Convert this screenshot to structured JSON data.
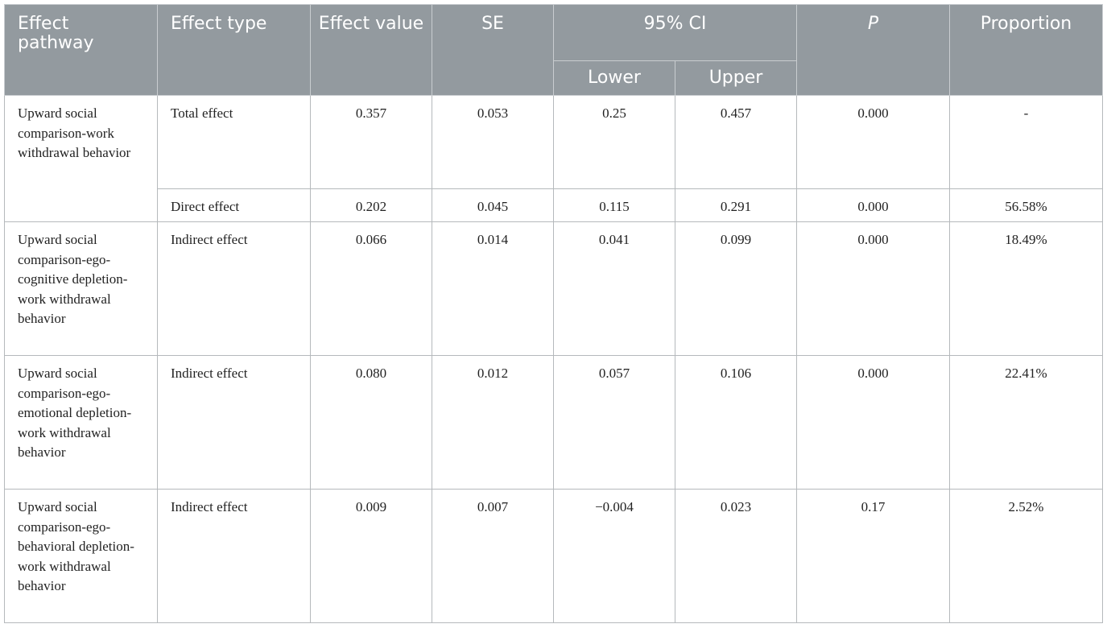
{
  "header": {
    "effect_pathway": "Effect pathway",
    "effect_type": "Effect type",
    "effect_value": "Effect value",
    "se": "SE",
    "ci": "95% CI",
    "lower": "Lower",
    "upper": "Upper",
    "p": "P",
    "proportion": "Proportion"
  },
  "rows": [
    {
      "pathway": "Upward social comparison-work withdrawal behavior",
      "type": "Total effect",
      "value": "0.357",
      "se": "0.053",
      "lower": "0.25",
      "upper": "0.457",
      "p": "0.000",
      "proportion": "-"
    },
    {
      "type": "Direct effect",
      "value": "0.202",
      "se": "0.045",
      "lower": "0.115",
      "upper": "0.291",
      "p": "0.000",
      "proportion": "56.58%"
    },
    {
      "pathway": "Upward social comparison-ego-cognitive depletion-work withdrawal behavior",
      "type": "Indirect effect",
      "value": "0.066",
      "se": "0.014",
      "lower": "0.041",
      "upper": "0.099",
      "p": "0.000",
      "proportion": "18.49%"
    },
    {
      "pathway": "Upward social comparison-ego-emotional depletion-work withdrawal behavior",
      "type": "Indirect effect",
      "value": "0.080",
      "se": "0.012",
      "lower": "0.057",
      "upper": "0.106",
      "p": "0.000",
      "proportion": "22.41%"
    },
    {
      "pathway": "Upward social comparison-ego-behavioral depletion-work withdrawal behavior",
      "type": "Indirect effect",
      "value": "0.009",
      "se": "0.007",
      "lower": "−0.004",
      "upper": "0.023",
      "p": "0.17",
      "proportion": "2.52%"
    }
  ]
}
